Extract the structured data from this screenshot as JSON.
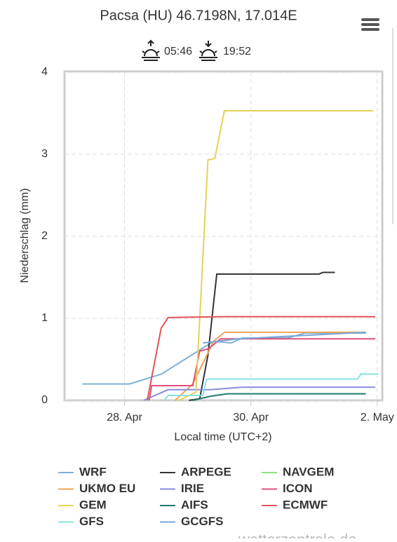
{
  "chart_data": {
    "type": "line",
    "title": "Pacsa (HU) 46.7198N, 17.014E",
    "sunrise": "05:46",
    "sunset": "19:52",
    "y_label": "Niederschlag (mm)",
    "x_label": "Local time (UTC+2)",
    "watermark": "wetterzentrale.de",
    "xlim": [
      27.05,
      32.08
    ],
    "xticks": [
      {
        "value": 28,
        "label": "28. Apr"
      },
      {
        "value": 30,
        "label": "30. Apr"
      },
      {
        "value": 32,
        "label": "2. May"
      }
    ],
    "ylim": [
      0,
      4
    ],
    "yticks": [
      0,
      1,
      2,
      3,
      4
    ],
    "grid": true,
    "series": [
      {
        "name": "WRF",
        "color": "#7fb0d6",
        "x": [
          27.33,
          28.08,
          28.58,
          29.41,
          29.69,
          29.86,
          30.58,
          30.86,
          31.82
        ],
        "values": [
          0.2,
          0.2,
          0.32,
          0.72,
          0.7,
          0.76,
          0.76,
          0.82,
          0.82
        ]
      },
      {
        "name": "ARPEGE",
        "color": "#333333",
        "x": [
          29.02,
          29.19,
          29.32,
          29.46,
          31.08,
          31.14,
          31.33
        ],
        "values": [
          0,
          0.02,
          0.55,
          1.54,
          1.54,
          1.56,
          1.56
        ]
      },
      {
        "name": "NAVGEM",
        "color": "#90e07e",
        "x": [],
        "values": []
      },
      {
        "name": "UKMO EU",
        "color": "#f0a456",
        "x": [
          28.8,
          29.08,
          29.41,
          29.58,
          31.82
        ],
        "values": [
          0,
          0.2,
          0.72,
          0.83,
          0.83
        ]
      },
      {
        "name": "IRIE",
        "color": "#8a8ae0",
        "x": [
          28.3,
          28.69,
          29.36,
          29.86,
          31.97
        ],
        "values": [
          0,
          0.13,
          0.13,
          0.16,
          0.16
        ]
      },
      {
        "name": "ICON",
        "color": "#e0507a",
        "x": [
          28.39,
          28.43,
          29.08,
          29.19,
          29.33,
          29.52,
          31.97
        ],
        "values": [
          0,
          0.18,
          0.18,
          0.6,
          0.63,
          0.75,
          0.75
        ]
      },
      {
        "name": "GEM",
        "color": "#e6d156",
        "x": [
          28.86,
          29.13,
          29.32,
          29.43,
          29.58,
          31.94
        ],
        "values": [
          0,
          0.1,
          2.93,
          2.95,
          3.53,
          3.53
        ]
      },
      {
        "name": "AIFS",
        "color": "#1e7b70",
        "x": [
          29.08,
          29.36,
          29.63,
          31.82
        ],
        "values": [
          0,
          0.05,
          0.08,
          0.08
        ]
      },
      {
        "name": "ECMWF",
        "color": "#e05555",
        "x": [
          28.36,
          28.58,
          28.69,
          29.58,
          31.97
        ],
        "values": [
          0,
          0.88,
          1.01,
          1.02,
          1.02
        ]
      },
      {
        "name": "GFS",
        "color": "#86e2e2",
        "x": [
          28.63,
          28.69,
          29.24,
          29.3,
          31.69,
          31.74,
          32.02
        ],
        "values": [
          0,
          0.06,
          0.06,
          0.26,
          0.26,
          0.32,
          0.32
        ]
      },
      {
        "name": "GCGFS",
        "color": "#78a6d8",
        "x": [
          29.24,
          29.8,
          31.82
        ],
        "values": [
          0.7,
          0.75,
          0.83
        ]
      }
    ]
  }
}
